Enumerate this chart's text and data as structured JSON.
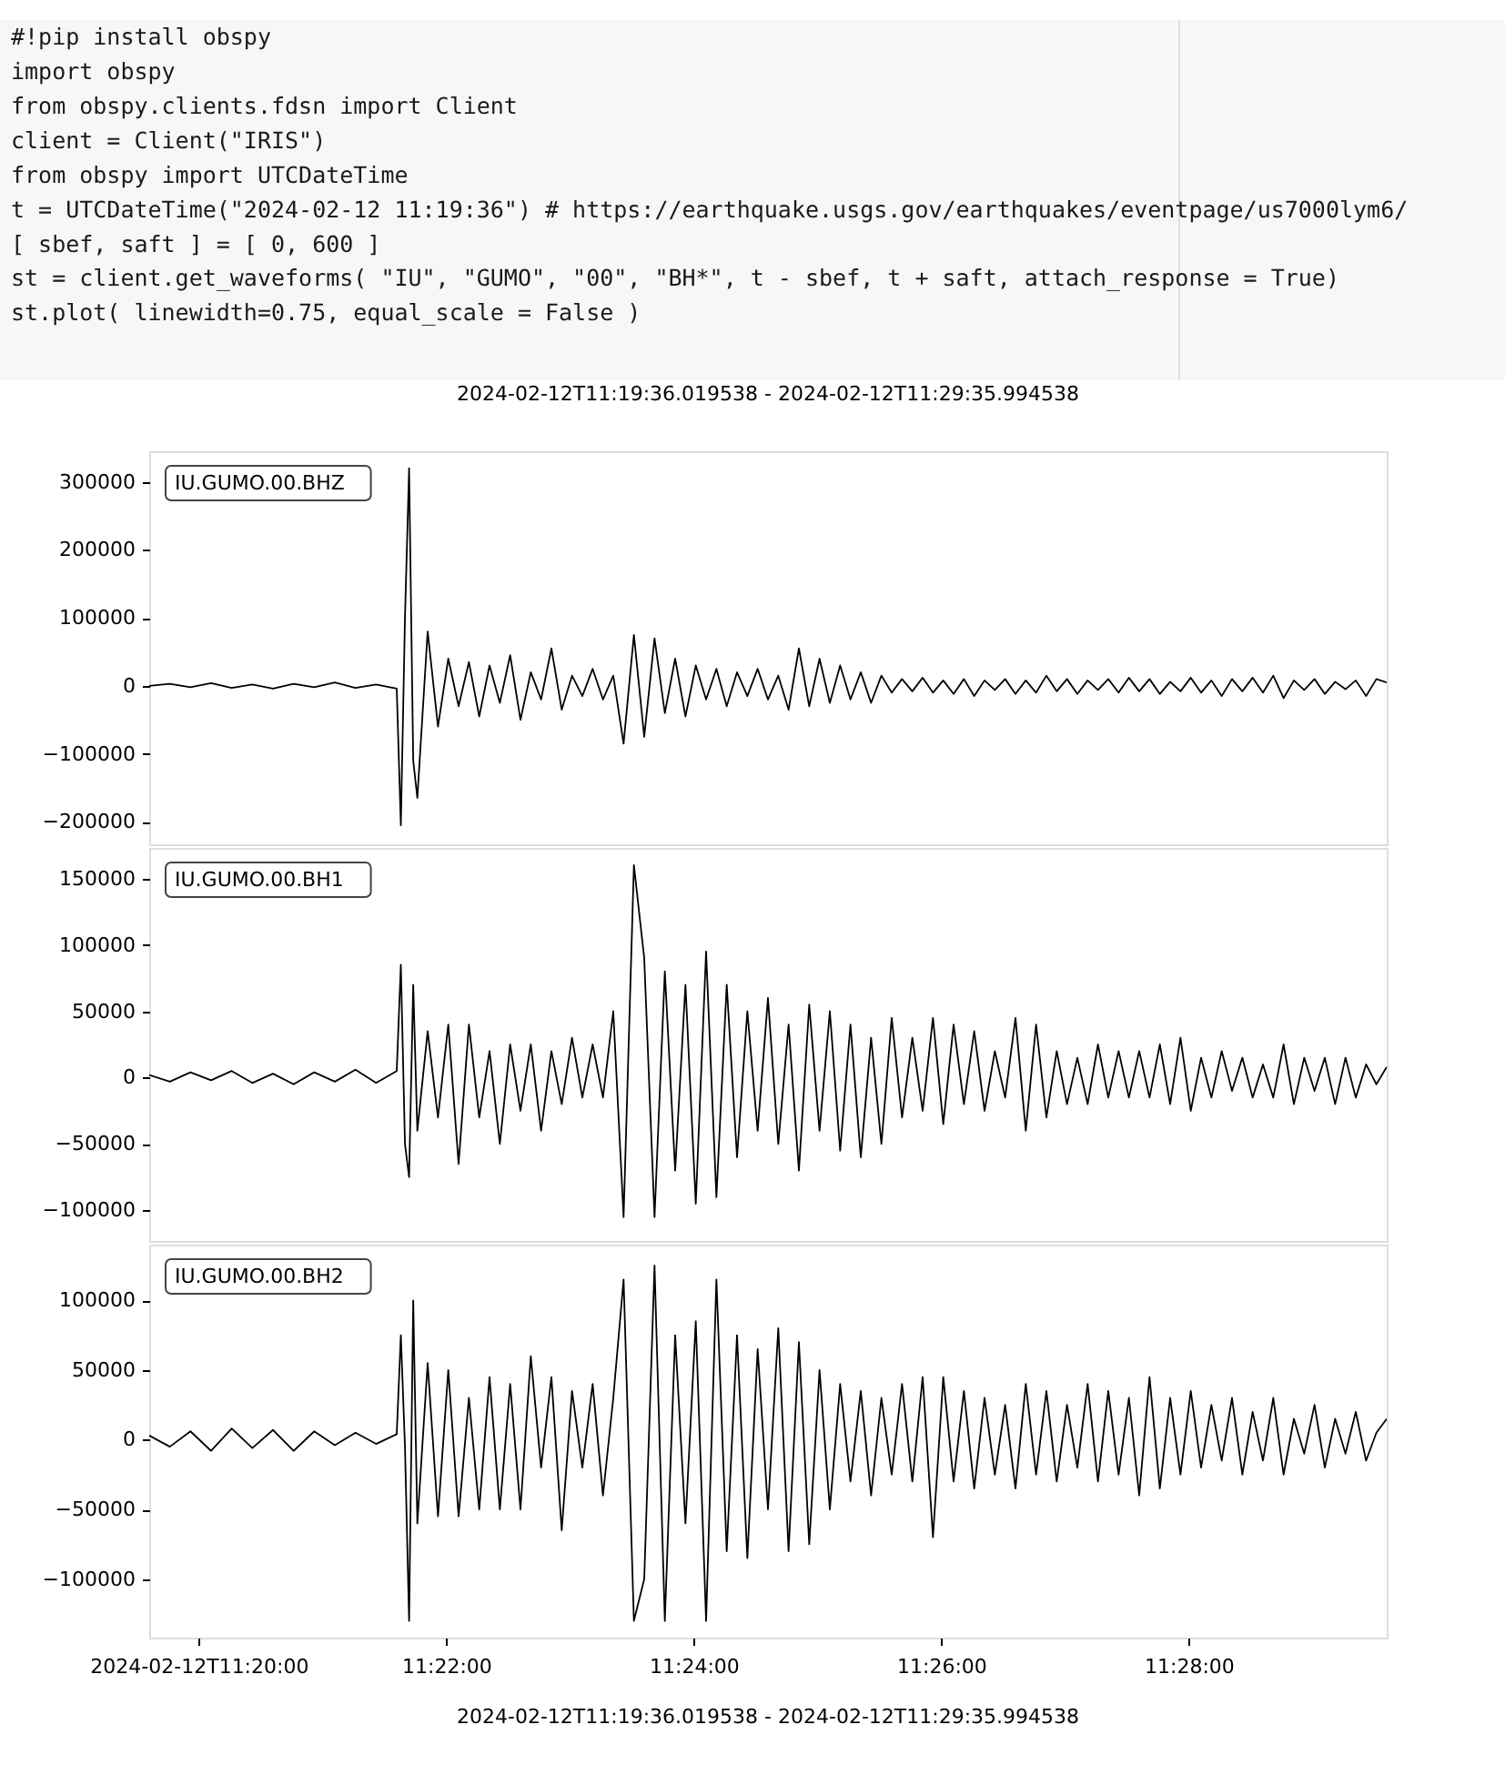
{
  "chart_data": [
    {
      "type": "line",
      "title": "2024-02-12T11:19:36.019538  -  2024-02-12T11:29:35.994538",
      "annotations": [
        "#!pip install obspy",
        "import obspy",
        "from obspy.clients.fdsn import Client",
        "client = Client(\"IRIS\")",
        "from obspy import UTCDateTime",
        "t = UTCDateTime(\"2024-02-12 11:19:36\") # https://earthquake.usgs.gov/earthquakes/eventpage/us7000lym6/",
        "[ sbef, saft ] = [ 0, 600 ]",
        "st = client.get_waveforms( \"IU\", \"GUMO\", \"00\", \"BH*\", t - sbef, t + saft, attach_response = True)",
        "st.plot( linewidth=0.75, equal_scale = False )"
      ],
      "x": [
        "2024-02-12T11:19:36",
        "2024-02-12T11:19:46",
        "2024-02-12T11:19:56",
        "2024-02-12T11:20:06",
        "2024-02-12T11:20:16",
        "2024-02-12T11:20:26",
        "2024-02-12T11:20:36",
        "2024-02-12T11:20:46",
        "2024-02-12T11:20:56",
        "2024-02-12T11:21:06",
        "2024-02-12T11:21:16",
        "2024-02-12T11:21:26",
        "2024-02-12T11:21:36",
        "2024-02-12T11:21:38",
        "2024-02-12T11:21:40",
        "2024-02-12T11:21:42",
        "2024-02-12T11:21:44",
        "2024-02-12T11:21:46",
        "2024-02-12T11:21:51",
        "2024-02-12T11:21:56",
        "2024-02-12T11:22:01",
        "2024-02-12T11:22:06",
        "2024-02-12T11:22:11",
        "2024-02-12T11:22:16",
        "2024-02-12T11:22:21",
        "2024-02-12T11:22:26",
        "2024-02-12T11:22:31",
        "2024-02-12T11:22:36",
        "2024-02-12T11:22:41",
        "2024-02-12T11:22:46",
        "2024-02-12T11:22:51",
        "2024-02-12T11:22:56",
        "2024-02-12T11:23:01",
        "2024-02-12T11:23:06",
        "2024-02-12T11:23:11",
        "2024-02-12T11:23:16",
        "2024-02-12T11:23:21",
        "2024-02-12T11:23:26",
        "2024-02-12T11:23:31",
        "2024-02-12T11:23:36",
        "2024-02-12T11:23:41",
        "2024-02-12T11:23:46",
        "2024-02-12T11:23:51",
        "2024-02-12T11:23:56",
        "2024-02-12T11:24:01",
        "2024-02-12T11:24:06",
        "2024-02-12T11:24:11",
        "2024-02-12T11:24:16",
        "2024-02-12T11:24:21",
        "2024-02-12T11:24:26",
        "2024-02-12T11:24:31",
        "2024-02-12T11:24:36",
        "2024-02-12T11:24:41",
        "2024-02-12T11:24:46",
        "2024-02-12T11:24:51",
        "2024-02-12T11:24:56",
        "2024-02-12T11:25:01",
        "2024-02-12T11:25:06",
        "2024-02-12T11:25:11",
        "2024-02-12T11:25:16",
        "2024-02-12T11:25:21",
        "2024-02-12T11:25:26",
        "2024-02-12T11:25:31",
        "2024-02-12T11:25:36",
        "2024-02-12T11:25:41",
        "2024-02-12T11:25:46",
        "2024-02-12T11:25:51",
        "2024-02-12T11:25:56",
        "2024-02-12T11:26:01",
        "2024-02-12T11:26:06",
        "2024-02-12T11:26:11",
        "2024-02-12T11:26:16",
        "2024-02-12T11:26:21",
        "2024-02-12T11:26:26",
        "2024-02-12T11:26:31",
        "2024-02-12T11:26:36",
        "2024-02-12T11:26:41",
        "2024-02-12T11:26:46",
        "2024-02-12T11:26:51",
        "2024-02-12T11:26:56",
        "2024-02-12T11:27:01",
        "2024-02-12T11:27:06",
        "2024-02-12T11:27:11",
        "2024-02-12T11:27:16",
        "2024-02-12T11:27:21",
        "2024-02-12T11:27:26",
        "2024-02-12T11:27:31",
        "2024-02-12T11:27:36",
        "2024-02-12T11:27:41",
        "2024-02-12T11:27:46",
        "2024-02-12T11:27:51",
        "2024-02-12T11:27:56",
        "2024-02-12T11:28:01",
        "2024-02-12T11:28:06",
        "2024-02-12T11:28:11",
        "2024-02-12T11:28:16",
        "2024-02-12T11:28:21",
        "2024-02-12T11:28:26",
        "2024-02-12T11:28:31",
        "2024-02-12T11:28:36",
        "2024-02-12T11:28:41",
        "2024-02-12T11:28:46",
        "2024-02-12T11:28:51",
        "2024-02-12T11:28:56",
        "2024-02-12T11:29:01",
        "2024-02-12T11:29:06",
        "2024-02-12T11:29:11",
        "2024-02-12T11:29:16",
        "2024-02-12T11:29:21",
        "2024-02-12T11:29:26",
        "2024-02-12T11:29:31",
        "2024-02-12T11:29:36"
      ],
      "series": [
        {
          "name": "IU.GUMO.00.BHZ",
          "color": "#000000",
          "values": [
            0,
            3000,
            -2000,
            4000,
            -3000,
            2000,
            -4000,
            3000,
            -2000,
            5000,
            -3000,
            2000,
            -4000,
            -205000,
            100000,
            320000,
            -110000,
            -165000,
            80000,
            -60000,
            40000,
            -30000,
            35000,
            -45000,
            30000,
            -25000,
            45000,
            -50000,
            20000,
            -20000,
            55000,
            -35000,
            15000,
            -15000,
            25000,
            -20000,
            15000,
            -85000,
            75000,
            -75000,
            70000,
            -40000,
            40000,
            -45000,
            30000,
            -20000,
            25000,
            -30000,
            20000,
            -15000,
            25000,
            -20000,
            15000,
            -35000,
            55000,
            -30000,
            40000,
            -25000,
            30000,
            -20000,
            20000,
            -25000,
            15000,
            -10000,
            10000,
            -8000,
            12000,
            -10000,
            8000,
            -12000,
            10000,
            -15000,
            8000,
            -6000,
            10000,
            -12000,
            8000,
            -10000,
            15000,
            -8000,
            10000,
            -12000,
            8000,
            -6000,
            10000,
            -10000,
            12000,
            -8000,
            10000,
            -12000,
            6000,
            -8000,
            12000,
            -10000,
            8000,
            -15000,
            10000,
            -8000,
            12000,
            -10000,
            15000,
            -18000,
            8000,
            -6000,
            10000,
            -12000,
            6000,
            -5000,
            8000,
            -15000,
            10000,
            5000
          ]
        }
      ],
      "xlim": [
        "2024-02-12T11:19:36",
        "2024-02-12T11:29:36"
      ],
      "ylim": [
        -233000,
        345000
      ],
      "yticks": [
        -200000,
        -100000,
        0,
        100000,
        200000,
        300000
      ],
      "tick_labels": "y",
      "legend": "top left",
      "grid": false
    },
    {
      "type": "line",
      "x": [
        "2024-02-12T11:19:36",
        "2024-02-12T11:19:46",
        "2024-02-12T11:19:56",
        "2024-02-12T11:20:06",
        "2024-02-12T11:20:16",
        "2024-02-12T11:20:26",
        "2024-02-12T11:20:36",
        "2024-02-12T11:20:46",
        "2024-02-12T11:20:56",
        "2024-02-12T11:21:06",
        "2024-02-12T11:21:16",
        "2024-02-12T11:21:26",
        "2024-02-12T11:21:36",
        "2024-02-12T11:21:38",
        "2024-02-12T11:21:40",
        "2024-02-12T11:21:42",
        "2024-02-12T11:21:44",
        "2024-02-12T11:21:46",
        "2024-02-12T11:21:51",
        "2024-02-12T11:21:56",
        "2024-02-12T11:22:01",
        "2024-02-12T11:22:06",
        "2024-02-12T11:22:11",
        "2024-02-12T11:22:16",
        "2024-02-12T11:22:21",
        "2024-02-12T11:22:26",
        "2024-02-12T11:22:31",
        "2024-02-12T11:22:36",
        "2024-02-12T11:22:41",
        "2024-02-12T11:22:46",
        "2024-02-12T11:22:51",
        "2024-02-12T11:22:56",
        "2024-02-12T11:23:01",
        "2024-02-12T11:23:06",
        "2024-02-12T11:23:11",
        "2024-02-12T11:23:16",
        "2024-02-12T11:23:21",
        "2024-02-12T11:23:26",
        "2024-02-12T11:23:31",
        "2024-02-12T11:23:36",
        "2024-02-12T11:23:41",
        "2024-02-12T11:23:46",
        "2024-02-12T11:23:51",
        "2024-02-12T11:23:56",
        "2024-02-12T11:24:01",
        "2024-02-12T11:24:06",
        "2024-02-12T11:24:11",
        "2024-02-12T11:24:16",
        "2024-02-12T11:24:21",
        "2024-02-12T11:24:26",
        "2024-02-12T11:24:31",
        "2024-02-12T11:24:36",
        "2024-02-12T11:24:41",
        "2024-02-12T11:24:46",
        "2024-02-12T11:24:51",
        "2024-02-12T11:24:56",
        "2024-02-12T11:25:01",
        "2024-02-12T11:25:06",
        "2024-02-12T11:25:11",
        "2024-02-12T11:25:16",
        "2024-02-12T11:25:21",
        "2024-02-12T11:25:26",
        "2024-02-12T11:25:31",
        "2024-02-12T11:25:36",
        "2024-02-12T11:25:41",
        "2024-02-12T11:25:46",
        "2024-02-12T11:25:51",
        "2024-02-12T11:25:56",
        "2024-02-12T11:26:01",
        "2024-02-12T11:26:06",
        "2024-02-12T11:26:11",
        "2024-02-12T11:26:16",
        "2024-02-12T11:26:21",
        "2024-02-12T11:26:26",
        "2024-02-12T11:26:31",
        "2024-02-12T11:26:36",
        "2024-02-12T11:26:41",
        "2024-02-12T11:26:46",
        "2024-02-12T11:26:51",
        "2024-02-12T11:26:56",
        "2024-02-12T11:27:01",
        "2024-02-12T11:27:06",
        "2024-02-12T11:27:11",
        "2024-02-12T11:27:16",
        "2024-02-12T11:27:21",
        "2024-02-12T11:27:26",
        "2024-02-12T11:27:31",
        "2024-02-12T11:27:36",
        "2024-02-12T11:27:41",
        "2024-02-12T11:27:46",
        "2024-02-12T11:27:51",
        "2024-02-12T11:27:56",
        "2024-02-12T11:28:01",
        "2024-02-12T11:28:06",
        "2024-02-12T11:28:11",
        "2024-02-12T11:28:16",
        "2024-02-12T11:28:21",
        "2024-02-12T11:28:26",
        "2024-02-12T11:28:31",
        "2024-02-12T11:28:36",
        "2024-02-12T11:28:41",
        "2024-02-12T11:28:46",
        "2024-02-12T11:28:51",
        "2024-02-12T11:28:56",
        "2024-02-12T11:29:01",
        "2024-02-12T11:29:06",
        "2024-02-12T11:29:11",
        "2024-02-12T11:29:16",
        "2024-02-12T11:29:21",
        "2024-02-12T11:29:26",
        "2024-02-12T11:29:31",
        "2024-02-12T11:29:36"
      ],
      "series": [
        {
          "name": "IU.GUMO.00.BH1",
          "color": "#000000",
          "values": [
            2000,
            -3000,
            4000,
            -2000,
            5000,
            -4000,
            3000,
            -5000,
            4000,
            -3000,
            6000,
            -4000,
            5000,
            85000,
            -50000,
            -75000,
            70000,
            -40000,
            35000,
            -30000,
            40000,
            -65000,
            40000,
            -30000,
            20000,
            -50000,
            25000,
            -25000,
            25000,
            -40000,
            20000,
            -20000,
            30000,
            -15000,
            25000,
            -15000,
            50000,
            -105000,
            160000,
            90000,
            -105000,
            80000,
            -70000,
            70000,
            -95000,
            95000,
            -90000,
            70000,
            -60000,
            50000,
            -40000,
            60000,
            -50000,
            40000,
            -70000,
            55000,
            -40000,
            50000,
            -55000,
            40000,
            -60000,
            30000,
            -50000,
            45000,
            -30000,
            30000,
            -25000,
            45000,
            -35000,
            40000,
            -20000,
            35000,
            -25000,
            20000,
            -15000,
            45000,
            -40000,
            40000,
            -30000,
            20000,
            -20000,
            15000,
            -20000,
            25000,
            -15000,
            20000,
            -15000,
            20000,
            -15000,
            25000,
            -20000,
            30000,
            -25000,
            15000,
            -15000,
            20000,
            -10000,
            15000,
            -15000,
            10000,
            -15000,
            25000,
            -20000,
            15000,
            -10000,
            15000,
            -20000,
            15000,
            -15000,
            10000,
            -5000,
            8000
          ]
        }
      ],
      "xlim": [
        "2024-02-12T11:19:36",
        "2024-02-12T11:29:36"
      ],
      "ylim": [
        -123000,
        173000
      ],
      "yticks": [
        -100000,
        -50000,
        0,
        50000,
        100000,
        150000
      ],
      "tick_labels": "y",
      "legend": "top left",
      "grid": false
    },
    {
      "type": "line",
      "annotations": [
        "2024-02-12T11:19:36.019538  -  2024-02-12T11:29:35.994538"
      ],
      "x": [
        "2024-02-12T11:19:36",
        "2024-02-12T11:19:46",
        "2024-02-12T11:19:56",
        "2024-02-12T11:20:06",
        "2024-02-12T11:20:16",
        "2024-02-12T11:20:26",
        "2024-02-12T11:20:36",
        "2024-02-12T11:20:46",
        "2024-02-12T11:20:56",
        "2024-02-12T11:21:06",
        "2024-02-12T11:21:16",
        "2024-02-12T11:21:26",
        "2024-02-12T11:21:36",
        "2024-02-12T11:21:38",
        "2024-02-12T11:21:40",
        "2024-02-12T11:21:42",
        "2024-02-12T11:21:44",
        "2024-02-12T11:21:46",
        "2024-02-12T11:21:51",
        "2024-02-12T11:21:56",
        "2024-02-12T11:22:01",
        "2024-02-12T11:22:06",
        "2024-02-12T11:22:11",
        "2024-02-12T11:22:16",
        "2024-02-12T11:22:21",
        "2024-02-12T11:22:26",
        "2024-02-12T11:22:31",
        "2024-02-12T11:22:36",
        "2024-02-12T11:22:41",
        "2024-02-12T11:22:46",
        "2024-02-12T11:22:51",
        "2024-02-12T11:22:56",
        "2024-02-12T11:23:01",
        "2024-02-12T11:23:06",
        "2024-02-12T11:23:11",
        "2024-02-12T11:23:16",
        "2024-02-12T11:23:21",
        "2024-02-12T11:23:26",
        "2024-02-12T11:23:31",
        "2024-02-12T11:23:36",
        "2024-02-12T11:23:41",
        "2024-02-12T11:23:46",
        "2024-02-12T11:23:51",
        "2024-02-12T11:23:56",
        "2024-02-12T11:24:01",
        "2024-02-12T11:24:06",
        "2024-02-12T11:24:11",
        "2024-02-12T11:24:16",
        "2024-02-12T11:24:21",
        "2024-02-12T11:24:26",
        "2024-02-12T11:24:31",
        "2024-02-12T11:24:36",
        "2024-02-12T11:24:41",
        "2024-02-12T11:24:46",
        "2024-02-12T11:24:51",
        "2024-02-12T11:24:56",
        "2024-02-12T11:25:01",
        "2024-02-12T11:25:06",
        "2024-02-12T11:25:11",
        "2024-02-12T11:25:16",
        "2024-02-12T11:25:21",
        "2024-02-12T11:25:26",
        "2024-02-12T11:25:31",
        "2024-02-12T11:25:36",
        "2024-02-12T11:25:41",
        "2024-02-12T11:25:46",
        "2024-02-12T11:25:51",
        "2024-02-12T11:25:56",
        "2024-02-12T11:26:01",
        "2024-02-12T11:26:06",
        "2024-02-12T11:26:11",
        "2024-02-12T11:26:16",
        "2024-02-12T11:26:21",
        "2024-02-12T11:26:26",
        "2024-02-12T11:26:31",
        "2024-02-12T11:26:36",
        "2024-02-12T11:26:41",
        "2024-02-12T11:26:46",
        "2024-02-12T11:26:51",
        "2024-02-12T11:26:56",
        "2024-02-12T11:27:01",
        "2024-02-12T11:27:06",
        "2024-02-12T11:27:11",
        "2024-02-12T11:27:16",
        "2024-02-12T11:27:21",
        "2024-02-12T11:27:26",
        "2024-02-12T11:27:31",
        "2024-02-12T11:27:36",
        "2024-02-12T11:27:41",
        "2024-02-12T11:27:46",
        "2024-02-12T11:27:51",
        "2024-02-12T11:27:56",
        "2024-02-12T11:28:01",
        "2024-02-12T11:28:06",
        "2024-02-12T11:28:11",
        "2024-02-12T11:28:16",
        "2024-02-12T11:28:21",
        "2024-02-12T11:28:26",
        "2024-02-12T11:28:31",
        "2024-02-12T11:28:36",
        "2024-02-12T11:28:41",
        "2024-02-12T11:28:46",
        "2024-02-12T11:28:51",
        "2024-02-12T11:28:56",
        "2024-02-12T11:29:01",
        "2024-02-12T11:29:06",
        "2024-02-12T11:29:11",
        "2024-02-12T11:29:16",
        "2024-02-12T11:29:21",
        "2024-02-12T11:29:26",
        "2024-02-12T11:29:31",
        "2024-02-12T11:29:36"
      ],
      "series": [
        {
          "name": "IU.GUMO.00.BH2",
          "color": "#000000",
          "values": [
            3000,
            -5000,
            6000,
            -8000,
            8000,
            -6000,
            7000,
            -8000,
            6000,
            -4000,
            5000,
            -3000,
            4000,
            75000,
            -5000,
            -130000,
            100000,
            -60000,
            55000,
            -55000,
            50000,
            -55000,
            30000,
            -50000,
            45000,
            -50000,
            40000,
            -50000,
            60000,
            -20000,
            45000,
            -65000,
            35000,
            -20000,
            40000,
            -40000,
            30000,
            115000,
            -130000,
            -100000,
            125000,
            -130000,
            75000,
            -60000,
            85000,
            -130000,
            115000,
            -80000,
            75000,
            -85000,
            65000,
            -50000,
            80000,
            -80000,
            70000,
            -75000,
            50000,
            -50000,
            40000,
            -30000,
            35000,
            -40000,
            30000,
            -25000,
            40000,
            -30000,
            45000,
            -70000,
            45000,
            -30000,
            35000,
            -35000,
            30000,
            -25000,
            25000,
            -35000,
            40000,
            -25000,
            35000,
            -30000,
            25000,
            -20000,
            40000,
            -30000,
            35000,
            -25000,
            30000,
            -40000,
            45000,
            -35000,
            30000,
            -25000,
            35000,
            -20000,
            25000,
            -15000,
            30000,
            -25000,
            20000,
            -15000,
            30000,
            -25000,
            15000,
            -10000,
            25000,
            -20000,
            15000,
            -10000,
            20000,
            -15000,
            5000,
            15000
          ]
        }
      ],
      "xlim": [
        "2024-02-12T11:19:36",
        "2024-02-12T11:29:36"
      ],
      "xticks": [
        {
          "value": "2024-02-12T11:20:00",
          "label": "2024-02-12T11:20:00"
        },
        {
          "value": "2024-02-12T11:22:00",
          "label": "11:22:00"
        },
        {
          "value": "2024-02-12T11:24:00",
          "label": "11:24:00"
        },
        {
          "value": "2024-02-12T11:26:00",
          "label": "11:26:00"
        },
        {
          "value": "2024-02-12T11:28:00",
          "label": "11:28:00"
        }
      ],
      "ylim": [
        -142000,
        140000
      ],
      "yticks": [
        -100000,
        -50000,
        0,
        50000,
        100000
      ],
      "legend": "top left",
      "grid": false
    }
  ]
}
